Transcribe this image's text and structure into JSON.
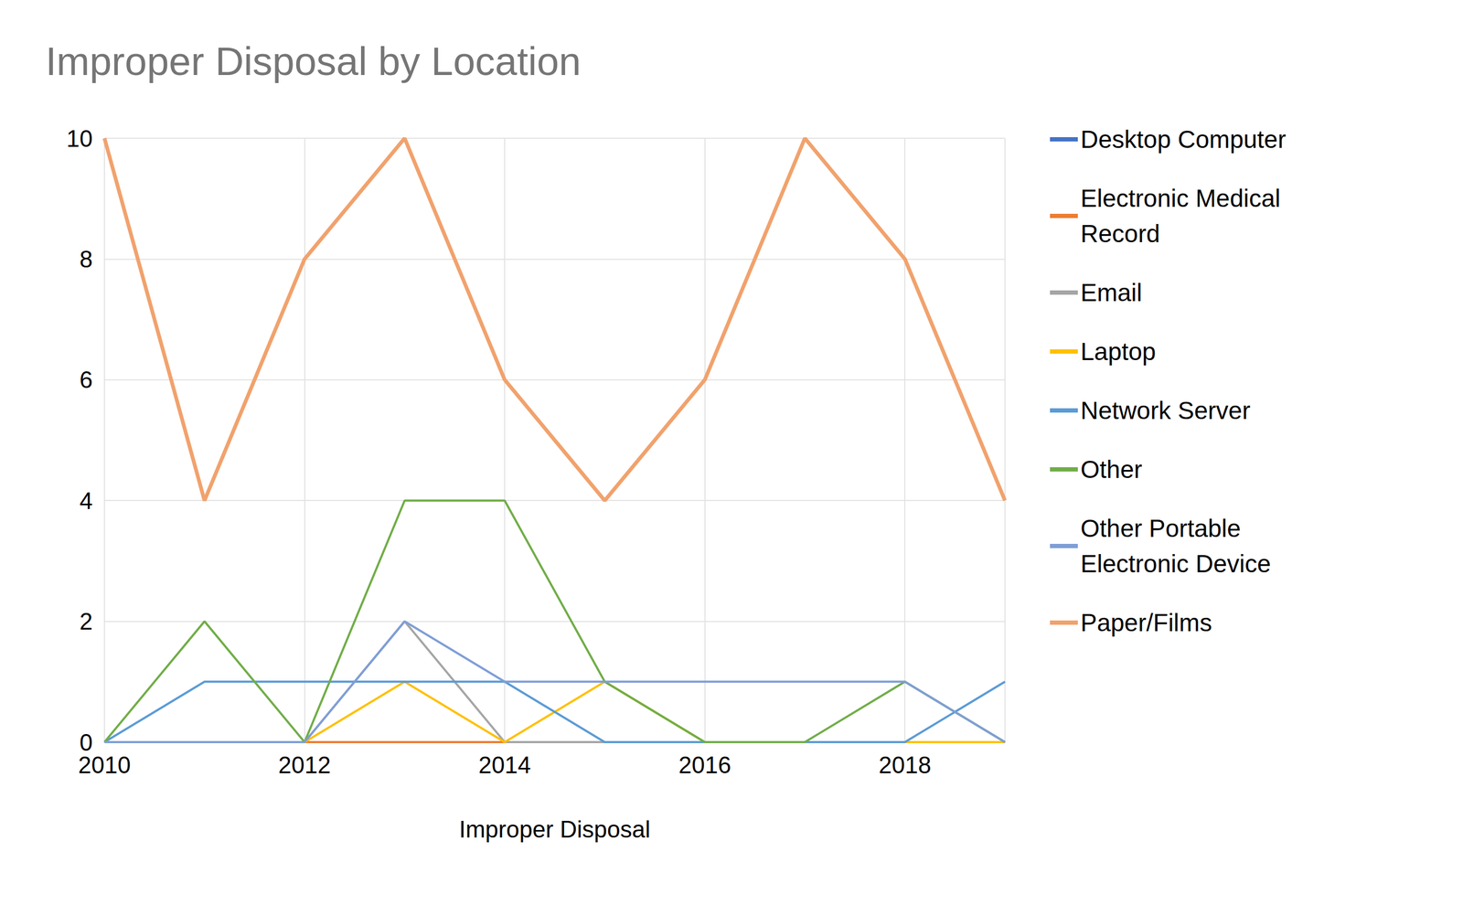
{
  "chart_data": {
    "type": "line",
    "title": "Improper Disposal by Location",
    "xlabel": "Improper Disposal",
    "x": [
      2010,
      2011,
      2012,
      2013,
      2014,
      2015,
      2016,
      2017,
      2018,
      2019
    ],
    "xlim": [
      2010,
      2019
    ],
    "xticks": [
      2010,
      2012,
      2014,
      2016,
      2018
    ],
    "ylim": [
      0,
      10
    ],
    "yticks": [
      0,
      2,
      4,
      6,
      8,
      10
    ],
    "grid": true,
    "legend": "right",
    "series": [
      {
        "name": "Desktop Computer",
        "color": "#4472C4",
        "values": [
          0,
          0,
          0,
          0,
          0,
          0,
          0,
          0,
          0,
          0
        ]
      },
      {
        "name": "Electronic Medical Record",
        "color": "#ED7D31",
        "values": [
          0,
          0,
          0,
          0,
          0,
          0,
          0,
          0,
          0,
          0
        ]
      },
      {
        "name": "Email",
        "color": "#A5A5A5",
        "values": [
          0,
          0,
          0,
          2,
          0,
          0,
          0,
          0,
          0,
          0
        ]
      },
      {
        "name": "Laptop",
        "color": "#FFC000",
        "values": [
          0,
          0,
          0,
          1,
          0,
          1,
          0,
          0,
          0,
          0
        ]
      },
      {
        "name": "Network Server",
        "color": "#5B9BD5",
        "values": [
          0,
          1,
          1,
          1,
          1,
          0,
          0,
          0,
          0,
          1
        ]
      },
      {
        "name": "Other",
        "color": "#70AD47",
        "values": [
          0,
          2,
          0,
          4,
          4,
          1,
          0,
          0,
          1,
          0
        ]
      },
      {
        "name": "Other Portable Electronic Device",
        "color": "#7F9ED6",
        "values": [
          0,
          0,
          0,
          2,
          1,
          1,
          1,
          1,
          1,
          0
        ]
      },
      {
        "name": "Paper/Films",
        "color": "#F1A26D",
        "values": [
          10,
          4,
          8,
          10,
          6,
          4,
          6,
          10,
          8,
          4
        ]
      }
    ]
  }
}
